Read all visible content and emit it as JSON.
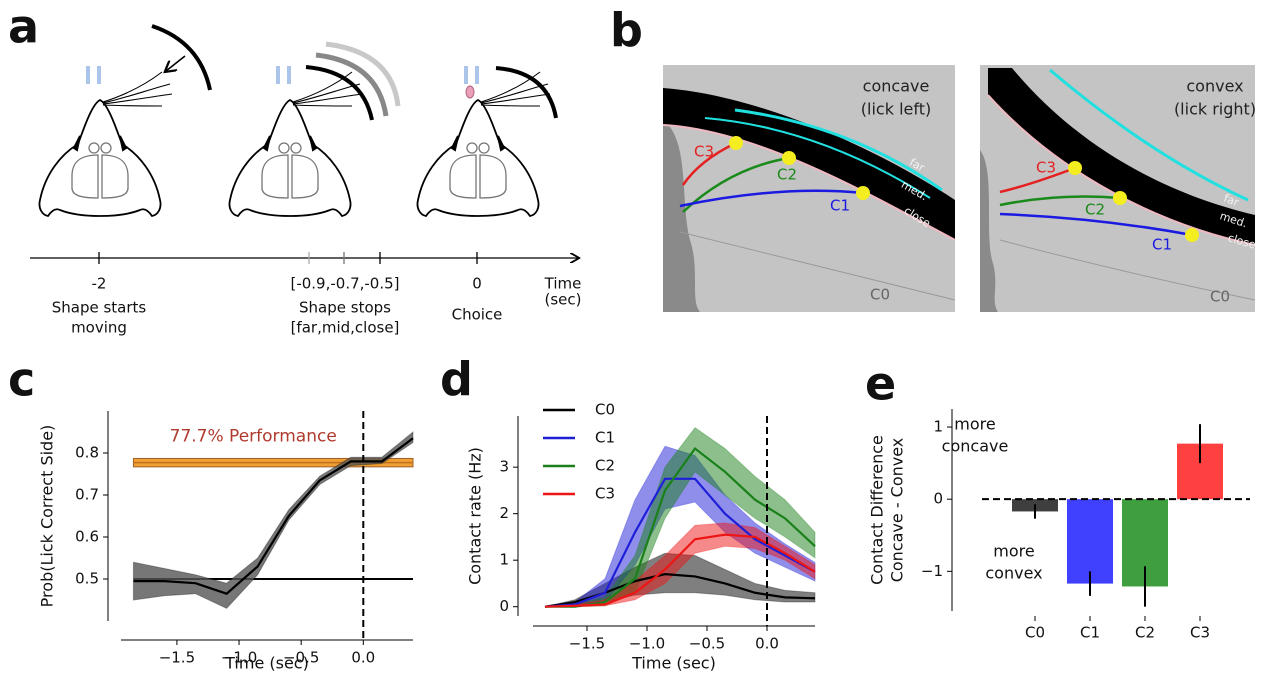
{
  "panel_labels": [
    "a",
    "b",
    "c",
    "d",
    "e"
  ],
  "timeline": {
    "events": [
      {
        "time": "-2",
        "lines": [
          "Shape starts",
          "moving"
        ]
      },
      {
        "time": "[-0.9,-0.7,-0.5]",
        "lines": [
          "Shape stops",
          "[far,mid,close]"
        ]
      },
      {
        "time": "0",
        "lines": [
          "Choice"
        ]
      }
    ],
    "axis_label": [
      "Time",
      "(sec)"
    ]
  },
  "images": [
    {
      "title": [
        "concave",
        "(lick left)"
      ],
      "whisker_labels": [
        "C3",
        "C2",
        "C1",
        "C0"
      ],
      "distance_labels": [
        "far",
        "med.",
        "close"
      ]
    },
    {
      "title": [
        "convex",
        "(lick right)"
      ],
      "whisker_labels": [
        "C3",
        "C2",
        "C1",
        "C0"
      ],
      "distance_labels": [
        "far",
        "med.",
        "close"
      ]
    }
  ],
  "chart_data": [
    {
      "type": "line",
      "xlabel": "Time (sec)",
      "ylabel": "Prob(Lick Correct Side)",
      "x": [
        -1.85,
        -1.6,
        -1.35,
        -1.1,
        -0.85,
        -0.6,
        -0.35,
        -0.1,
        0.15,
        0.4
      ],
      "xlim": [
        -1.95,
        0.4
      ],
      "ylim": [
        0.4,
        0.9
      ],
      "xticks": [
        {
          "value": -1.5,
          "label": "−1.5"
        },
        {
          "value": -1,
          "label": "−1.0"
        },
        {
          "value": -0.5,
          "label": "−0.5"
        },
        {
          "value": 0,
          "label": "0.0"
        }
      ],
      "yticks": [
        0.5,
        0.6,
        0.7,
        0.8
      ],
      "series": [
        {
          "color": "#000000",
          "band_color": "#555555",
          "values": [
            0.495,
            0.495,
            0.49,
            0.465,
            0.53,
            0.65,
            0.735,
            0.78,
            0.78,
            0.835
          ],
          "lower": [
            0.45,
            0.46,
            0.465,
            0.43,
            0.51,
            0.64,
            0.725,
            0.77,
            0.775,
            0.825
          ],
          "upper": [
            0.54,
            0.525,
            0.51,
            0.49,
            0.55,
            0.665,
            0.745,
            0.79,
            0.79,
            0.85
          ]
        }
      ],
      "chance": 0.5,
      "performance": {
        "value": 0.777,
        "lower": 0.767,
        "upper": 0.787,
        "color": "#f0a030",
        "label": "77.7% Performance",
        "label_color": "#b03a2e"
      },
      "vline": 0
    },
    {
      "type": "line",
      "xlabel": "Time (sec)",
      "ylabel": "Contact rate (Hz)",
      "x": [
        -1.85,
        -1.6,
        -1.35,
        -1.1,
        -0.85,
        -0.6,
        -0.35,
        -0.1,
        0.15,
        0.4
      ],
      "xlim": [
        -1.95,
        0.4
      ],
      "ylim": [
        -0.2,
        4.1
      ],
      "xticks": [
        {
          "value": -1.5,
          "label": "−1.5"
        },
        {
          "value": -1,
          "label": "−1.0"
        },
        {
          "value": -0.5,
          "label": "−0.5"
        },
        {
          "value": 0,
          "label": "0.0"
        }
      ],
      "yticks": [
        0,
        1,
        2,
        3
      ],
      "legend": "upper left",
      "series": [
        {
          "name": "C0",
          "color": "#000000",
          "values": [
            0,
            0.1,
            0.3,
            0.55,
            0.7,
            0.65,
            0.5,
            0.3,
            0.2,
            0.18
          ],
          "lower": [
            0,
            0.05,
            0.1,
            0.25,
            0.3,
            0.3,
            0.25,
            0.15,
            0.1,
            0.1
          ],
          "upper": [
            0,
            0.15,
            0.5,
            0.85,
            1.15,
            1.1,
            0.8,
            0.5,
            0.35,
            0.3
          ]
        },
        {
          "name": "C1",
          "color": "#1f1fd8",
          "values": [
            0,
            0.05,
            0.3,
            1.6,
            2.75,
            2.75,
            2.0,
            1.45,
            1.1,
            0.75
          ],
          "lower": [
            0,
            0,
            0.1,
            0.9,
            2.1,
            2.25,
            1.6,
            1.15,
            0.85,
            0.55
          ],
          "upper": [
            0,
            0.1,
            0.6,
            2.3,
            3.45,
            3.25,
            2.4,
            1.8,
            1.35,
            0.95
          ]
        },
        {
          "name": "C2",
          "color": "#1a801a",
          "values": [
            0,
            0,
            0.1,
            0.6,
            2.5,
            3.4,
            2.9,
            2.3,
            1.9,
            1.3
          ],
          "lower": [
            0,
            0,
            0.02,
            0.3,
            1.9,
            2.9,
            2.4,
            1.9,
            1.5,
            1.05
          ],
          "upper": [
            0,
            0.05,
            0.2,
            1.1,
            3.0,
            3.85,
            3.4,
            2.8,
            2.3,
            1.6
          ]
        },
        {
          "name": "C3",
          "color": "#ee1515",
          "values": [
            0,
            0.02,
            0.05,
            0.3,
            0.8,
            1.45,
            1.55,
            1.5,
            1.15,
            0.75
          ],
          "lower": [
            0,
            0,
            0.02,
            0.15,
            0.5,
            1.15,
            1.3,
            1.25,
            1.0,
            0.6
          ],
          "upper": [
            0,
            0.05,
            0.15,
            0.55,
            1.1,
            1.75,
            1.8,
            1.7,
            1.3,
            0.9
          ]
        }
      ],
      "vline": 0
    },
    {
      "type": "bar",
      "ylabel": [
        "Contact Difference",
        "Concave - Convex"
      ],
      "categories": [
        "C0",
        "C1",
        "C2",
        "C3"
      ],
      "values": [
        -0.17,
        -1.17,
        -1.21,
        0.77
      ],
      "errors": [
        0.1,
        0.17,
        0.28,
        0.27
      ],
      "colors": [
        "#3f3f3f",
        "#4040ff",
        "#3f9f3f",
        "#ff4040"
      ],
      "ylim": [
        -1.55,
        1.25
      ],
      "yticks": [
        {
          "value": -1,
          "label": "−1"
        },
        0,
        1
      ],
      "hline": 0,
      "annotations": [
        {
          "lines": [
            "more",
            "concave"
          ]
        },
        {
          "lines": [
            "more",
            "convex"
          ]
        }
      ]
    }
  ]
}
